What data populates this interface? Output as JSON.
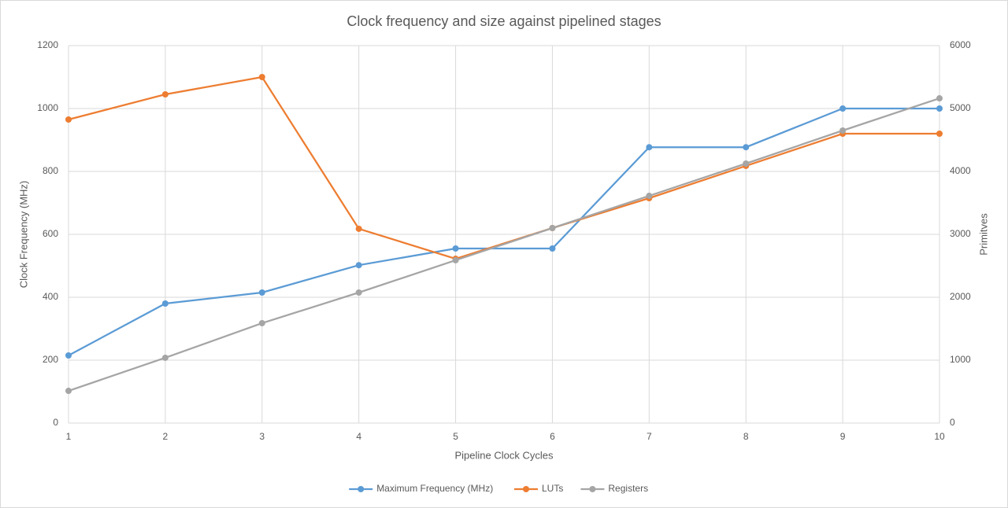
{
  "chart_data": {
    "type": "line",
    "title": "Clock frequency and size against pipelined stages",
    "x_label": "Pipeline Clock Cycles",
    "y_label": "Clock Frequency (MHz)",
    "y2_label": "Primitves",
    "x": [
      1,
      2,
      3,
      4,
      5,
      6,
      7,
      8,
      9,
      10
    ],
    "xlim": [
      1,
      10
    ],
    "xticks": [
      1,
      2,
      3,
      4,
      5,
      6,
      7,
      8,
      9,
      10
    ],
    "ylim": [
      0,
      1200
    ],
    "yticks": [
      0,
      200,
      400,
      600,
      800,
      1000,
      1200
    ],
    "y2lim": [
      0,
      6000
    ],
    "y2ticks": [
      0,
      1000,
      2000,
      3000,
      4000,
      5000,
      6000
    ],
    "grid": true,
    "legend": "bottom",
    "series": [
      {
        "name": "Maximum Frequency (MHz)",
        "color": "#5b9bd5",
        "values": [
          215,
          380,
          415,
          502,
          555,
          555,
          877,
          877,
          1000,
          1000
        ]
      },
      {
        "name": "LUTs",
        "color": "#ed7d31",
        "axis": "y2",
        "values": [
          4825,
          5225,
          5500,
          3088,
          2612,
          3100,
          3575,
          4088,
          4600,
          4600
        ]
      },
      {
        "name": "Registers",
        "color": "#a5a5a5",
        "axis": "y2",
        "values": [
          512,
          1038,
          1588,
          2075,
          2588,
          3100,
          3612,
          4125,
          4650,
          5162
        ]
      }
    ]
  }
}
